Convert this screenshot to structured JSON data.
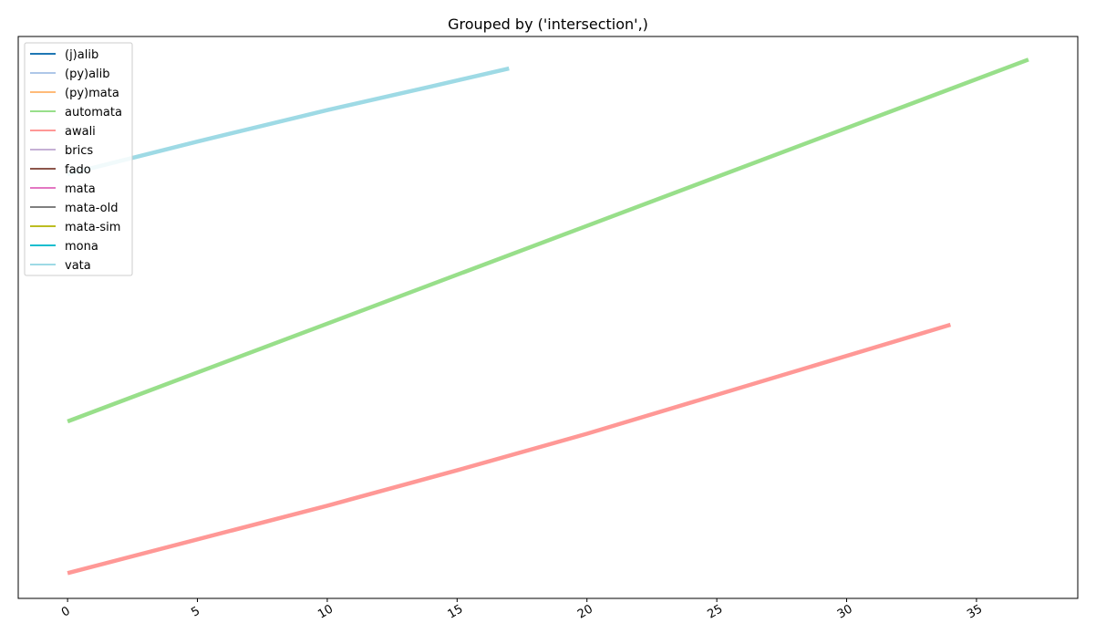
{
  "chart_data": {
    "type": "line",
    "title": "Grouped by ('intersection',)",
    "xlabel": "",
    "ylabel": "",
    "xlim": [
      -1.9,
      38.9
    ],
    "ylim": [
      0,
      100
    ],
    "x_ticks": [
      0,
      5,
      10,
      15,
      20,
      25,
      30,
      35
    ],
    "y_ticks_visible": false,
    "grid": false,
    "legend_position": "top-left",
    "series": [
      {
        "name": "(j)alib",
        "color": "#1f77b4",
        "x": [],
        "y": []
      },
      {
        "name": "(py)alib",
        "color": "#aec7e8",
        "x": [],
        "y": []
      },
      {
        "name": "(py)mata",
        "color": "#ffbb78",
        "x": [],
        "y": []
      },
      {
        "name": "automata",
        "color": "#98df8a",
        "x": [
          0,
          37
        ],
        "y": [
          31.5,
          95.9
        ]
      },
      {
        "name": "awali",
        "color": "#ff9896",
        "x": [
          0,
          10,
          15,
          20,
          34
        ],
        "y": [
          4.5,
          16.5,
          22.8,
          29.3,
          48.7
        ]
      },
      {
        "name": "brics",
        "color": "#c5b0d5",
        "x": [],
        "y": []
      },
      {
        "name": "fado",
        "color": "#8c564b",
        "x": [],
        "y": []
      },
      {
        "name": "mata",
        "color": "#e377c2",
        "x": [],
        "y": []
      },
      {
        "name": "mata-old",
        "color": "#7f7f7f",
        "x": [],
        "y": []
      },
      {
        "name": "mata-sim",
        "color": "#bcbd22",
        "x": [],
        "y": []
      },
      {
        "name": "mona",
        "color": "#17becf",
        "x": [],
        "y": []
      },
      {
        "name": "vata",
        "color": "#9edae5",
        "x": [
          0,
          5,
          10,
          14,
          17
        ],
        "y": [
          75.5,
          81.3,
          86.9,
          91.1,
          94.3
        ]
      }
    ]
  }
}
